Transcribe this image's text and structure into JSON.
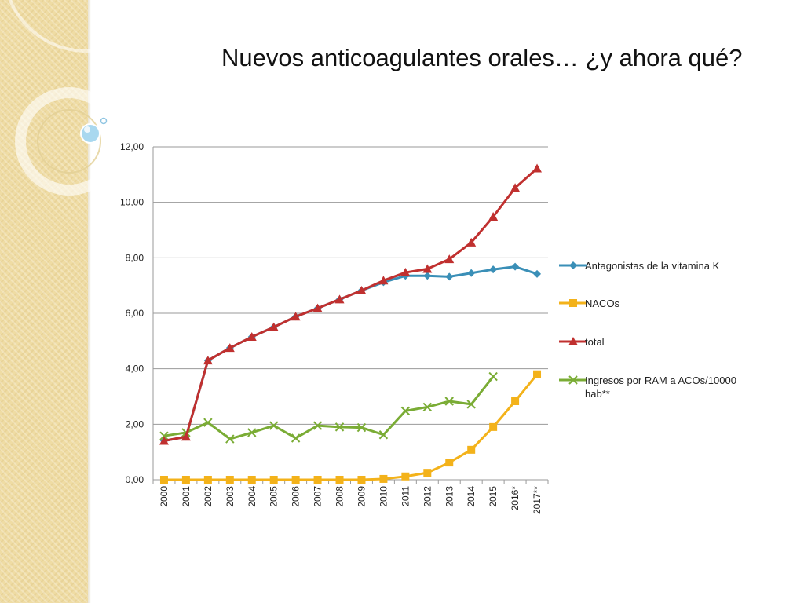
{
  "slide": {
    "title": "Nuevos anticoagulantes orales… ¿y ahora qué?"
  },
  "theme": {
    "panel_color": "#efdca4",
    "bubble_color": "#a9d8ef"
  },
  "chart_data": {
    "type": "line",
    "categories": [
      "2000",
      "2001",
      "2002",
      "2003",
      "2004",
      "2005",
      "2006",
      "2007",
      "2008",
      "2009",
      "2010",
      "2011",
      "2012",
      "2013",
      "2014",
      "2015",
      "2016*",
      "2017**"
    ],
    "ylim": [
      0,
      12
    ],
    "yticks": [
      "0,00",
      "2,00",
      "4,00",
      "6,00",
      "8,00",
      "10,00",
      "12,00"
    ],
    "ytick_values": [
      0,
      2,
      4,
      6,
      8,
      10,
      12
    ],
    "grid": true,
    "legend_position": "right",
    "series": [
      {
        "name": "Antagonistas de la vitamina K",
        "color": "#3a8fb7",
        "marker": "diamond",
        "values": [
          1.4,
          1.55,
          4.3,
          4.75,
          5.15,
          5.5,
          5.88,
          6.18,
          6.5,
          6.82,
          7.12,
          7.35,
          7.35,
          7.32,
          7.45,
          7.58,
          7.68,
          7.42
        ]
      },
      {
        "name": "NACOs",
        "color": "#f3b21a",
        "marker": "square",
        "values": [
          0.0,
          0.0,
          0.0,
          0.0,
          0.0,
          0.0,
          0.0,
          0.0,
          0.0,
          0.0,
          0.03,
          0.12,
          0.25,
          0.62,
          1.08,
          1.9,
          2.83,
          3.8
        ]
      },
      {
        "name": "total",
        "color": "#c0302f",
        "marker": "triangle",
        "values": [
          1.4,
          1.55,
          4.3,
          4.75,
          5.15,
          5.5,
          5.88,
          6.18,
          6.5,
          6.82,
          7.18,
          7.47,
          7.6,
          7.95,
          8.55,
          9.48,
          10.52,
          11.22
        ]
      },
      {
        "name": "Ingresos por RAM a ACOs/10000 hab**",
        "color": "#7aac35",
        "marker": "x",
        "values": [
          1.58,
          1.7,
          2.06,
          1.47,
          1.7,
          1.95,
          1.5,
          1.95,
          1.9,
          1.88,
          1.62,
          2.48,
          2.62,
          2.83,
          2.72,
          3.72,
          null,
          null
        ]
      }
    ]
  }
}
